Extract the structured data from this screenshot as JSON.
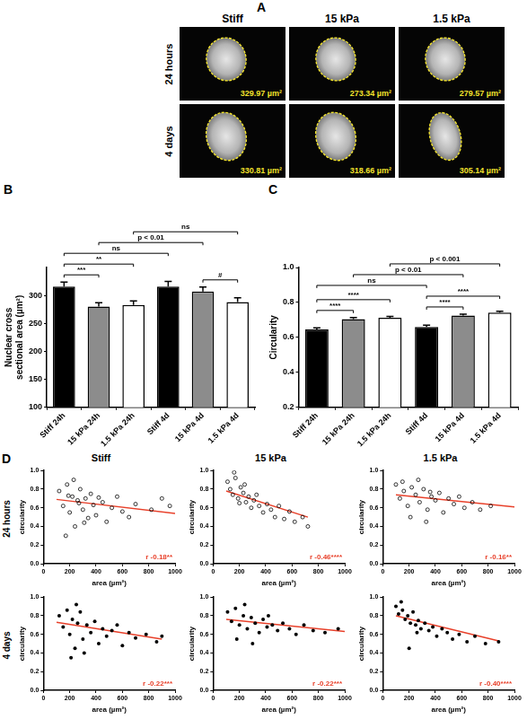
{
  "panel_a": {
    "letter": "A",
    "columns": [
      "Stiff",
      "15 kPa",
      "1.5 kPa"
    ],
    "rows": [
      "24 hours",
      "4 days"
    ],
    "areas": [
      [
        "329.97 µm²",
        "273.34 µm²",
        "279.57 µm²"
      ],
      [
        "330.81 µm²",
        "318.66 µm²",
        "305.14 µm²"
      ]
    ]
  },
  "panel_d": {
    "letter": "D",
    "columns": [
      "Stiff",
      "15 kPa",
      "1.5 kPa"
    ],
    "rows": [
      "24 hours",
      "4 days"
    ]
  },
  "chart_data": [
    {
      "panel": "B",
      "type": "bar",
      "categories": [
        "Stiff 24h",
        "15 kPa 24h",
        "1.5 kPa 24h",
        "Stiff 4d",
        "15 kPa 4d",
        "1.5 kPa 4d"
      ],
      "values": [
        316,
        280,
        283,
        316,
        307,
        288
      ],
      "errors": [
        8,
        7,
        7,
        9,
        8,
        8
      ],
      "colors": [
        "#000000",
        "#8c8c8c",
        "#ffffff",
        "#000000",
        "#8c8c8c",
        "#ffffff"
      ],
      "y_label": "Nuclear cross sectional area (µm²)",
      "ylim": [
        100,
        350
      ],
      "yticks": [
        100,
        150,
        200,
        250,
        300
      ],
      "grid": false,
      "annotations": [
        {
          "between": [
            "Stiff 24h",
            "15 kPa 24h"
          ],
          "label": "***"
        },
        {
          "between": [
            "Stiff 24h",
            "1.5 kPa 24h"
          ],
          "label": "**"
        },
        {
          "between": [
            "15 kPa 4d",
            "1.5 kPa 4d"
          ],
          "label": "#"
        },
        {
          "between": [
            "Stiff 24h",
            "Stiff 4d"
          ],
          "label": "ns"
        },
        {
          "between": [
            "15 kPa 24h",
            "15 kPa 4d"
          ],
          "label": "p < 0.01"
        },
        {
          "between": [
            "1.5 kPa 24h",
            "1.5 kPa 4d"
          ],
          "label": "ns"
        }
      ]
    },
    {
      "panel": "C",
      "type": "bar",
      "categories": [
        "Stiff 24h",
        "15 kPa 24h",
        "1.5 kPa 24h",
        "Stiff 4d",
        "15 kPa 4d",
        "1.5 kPa 4d"
      ],
      "values": [
        0.645,
        0.705,
        0.712,
        0.66,
        0.725,
        0.742
      ],
      "errors": [
        0.01,
        0.008,
        0.008,
        0.01,
        0.008,
        0.008
      ],
      "colors": [
        "#000000",
        "#8c8c8c",
        "#ffffff",
        "#000000",
        "#8c8c8c",
        "#ffffff"
      ],
      "y_label": "Circularity",
      "ylim": [
        0.2,
        1
      ],
      "yticks": [
        0.2,
        0.4,
        0.6,
        0.8,
        {
          "value": 1,
          "label": "1.0"
        }
      ],
      "grid": false,
      "annotations": [
        {
          "between": [
            "Stiff 24h",
            "15 kPa 24h"
          ],
          "label": "****"
        },
        {
          "between": [
            "Stiff 24h",
            "1.5 kPa 24h"
          ],
          "label": "****"
        },
        {
          "between": [
            "Stiff 4d",
            "15 kPa 4d"
          ],
          "label": "****"
        },
        {
          "between": [
            "Stiff 4d",
            "1.5 kPa 4d"
          ],
          "label": "****"
        },
        {
          "between": [
            "Stiff 24h",
            "Stiff 4d"
          ],
          "label": "ns"
        },
        {
          "between": [
            "15 kPa 24h",
            "15 kPa 4d"
          ],
          "label": "p < 0.01"
        },
        {
          "between": [
            "1.5 kPa 24h",
            "1.5 kPa 4d"
          ],
          "label": "p < 0.001"
        }
      ]
    },
    {
      "type": "scatter",
      "marker": "open_circle",
      "color": "#000000",
      "x": [
        120,
        150,
        180,
        200,
        220,
        240,
        260,
        280,
        300,
        320,
        340,
        360,
        380,
        400,
        420,
        450,
        480,
        520,
        560,
        600,
        650,
        700,
        820,
        900,
        960,
        170,
        230,
        310,
        270,
        190
      ],
      "values": [
        0.78,
        0.62,
        0.85,
        0.55,
        0.72,
        0.4,
        0.68,
        0.8,
        0.58,
        0.7,
        0.49,
        0.75,
        0.63,
        0.52,
        0.71,
        0.66,
        0.45,
        0.6,
        0.72,
        0.56,
        0.5,
        0.64,
        0.58,
        0.7,
        0.62,
        0.3,
        0.9,
        0.44,
        0.65,
        0.73
      ],
      "fit": {
        "x": [
          100,
          1000
        ],
        "values": [
          0.69,
          0.54
        ],
        "color": "#e8402a"
      },
      "x_label": "area (µm²)",
      "y_label": "circularity",
      "xlim": [
        0,
        1000
      ],
      "xticks": [
        0,
        200,
        400,
        600,
        800,
        1000
      ],
      "ylim": [
        0,
        1
      ],
      "yticks": [
        {
          "value": 0,
          "label": "0.0"
        },
        0.2,
        0.4,
        0.6,
        0.8,
        {
          "value": 1,
          "label": "1.0"
        }
      ],
      "grid": false,
      "annotations": [
        {
          "text": "r -0.18**",
          "color": "#e8402a"
        }
      ]
    },
    {
      "type": "scatter",
      "marker": "open_circle",
      "color": "#000000",
      "x": [
        110,
        130,
        150,
        170,
        190,
        210,
        230,
        250,
        270,
        290,
        310,
        330,
        350,
        380,
        410,
        440,
        470,
        500,
        540,
        580,
        620,
        680,
        720,
        160,
        200,
        240
      ],
      "values": [
        0.88,
        0.8,
        0.74,
        0.92,
        0.7,
        0.82,
        0.76,
        0.66,
        0.72,
        0.6,
        0.68,
        0.74,
        0.62,
        0.55,
        0.64,
        0.58,
        0.5,
        0.62,
        0.48,
        0.56,
        0.45,
        0.5,
        0.4,
        0.98,
        0.65,
        0.85
      ],
      "fit": {
        "x": [
          100,
          720
        ],
        "values": [
          0.78,
          0.5
        ],
        "color": "#e8402a"
      },
      "x_label": "area (µm²)",
      "y_label": "circularity",
      "xlim": [
        0,
        1000
      ],
      "xticks": [
        0,
        200,
        400,
        600,
        800,
        1000
      ],
      "ylim": [
        0,
        1
      ],
      "yticks": [
        {
          "value": 0,
          "label": "0.0"
        },
        0.2,
        0.4,
        0.6,
        0.8,
        {
          "value": 1,
          "label": "1.0"
        }
      ],
      "grid": false,
      "annotations": [
        {
          "text": "r -0.46****",
          "color": "#e8402a"
        }
      ]
    },
    {
      "type": "scatter",
      "marker": "open_circle",
      "color": "#000000",
      "x": [
        100,
        130,
        160,
        190,
        220,
        250,
        280,
        310,
        340,
        370,
        400,
        430,
        460,
        500,
        540,
        580,
        620,
        680,
        740,
        820,
        150,
        210,
        270,
        330,
        360
      ],
      "values": [
        0.85,
        0.7,
        0.78,
        0.62,
        0.82,
        0.74,
        0.66,
        0.8,
        0.58,
        0.72,
        0.68,
        0.76,
        0.55,
        0.7,
        0.64,
        0.72,
        0.6,
        0.66,
        0.58,
        0.62,
        0.88,
        0.5,
        0.9,
        0.45,
        0.77
      ],
      "fit": {
        "x": [
          100,
          1000
        ],
        "values": [
          0.74,
          0.61
        ],
        "color": "#e8402a"
      },
      "x_label": "area (µm²)",
      "y_label": "circularity",
      "xlim": [
        0,
        1000
      ],
      "xticks": [
        0,
        200,
        400,
        600,
        800,
        1000
      ],
      "ylim": [
        0,
        1
      ],
      "yticks": [
        {
          "value": 0,
          "label": "0.0"
        },
        0.2,
        0.4,
        0.6,
        0.8,
        {
          "value": 1,
          "label": "1.0"
        }
      ],
      "grid": false,
      "annotations": [
        {
          "text": "r -0.16**",
          "color": "#e8402a"
        }
      ]
    },
    {
      "type": "scatter",
      "marker": "filled_circle",
      "color": "#000000",
      "x": [
        120,
        150,
        180,
        200,
        220,
        240,
        260,
        280,
        300,
        330,
        360,
        390,
        420,
        450,
        480,
        520,
        560,
        600,
        650,
        700,
        780,
        860,
        900,
        210,
        250,
        310
      ],
      "values": [
        0.8,
        0.68,
        0.86,
        0.6,
        0.76,
        0.45,
        0.72,
        0.84,
        0.55,
        0.7,
        0.62,
        0.74,
        0.5,
        0.66,
        0.58,
        0.64,
        0.7,
        0.48,
        0.62,
        0.56,
        0.6,
        0.52,
        0.58,
        0.35,
        0.92,
        0.4
      ],
      "fit": {
        "x": [
          100,
          900
        ],
        "values": [
          0.73,
          0.55
        ],
        "color": "#e8402a"
      },
      "x_label": "area (µm²)",
      "y_label": "circularity",
      "xlim": [
        0,
        1000
      ],
      "xticks": [
        0,
        200,
        400,
        600,
        800,
        1000
      ],
      "ylim": [
        0,
        1
      ],
      "yticks": [
        {
          "value": 0,
          "label": "0.0"
        },
        0.2,
        0.4,
        0.6,
        0.8,
        {
          "value": 1,
          "label": "1.0"
        }
      ],
      "grid": false,
      "annotations": [
        {
          "text": "r -0.22***",
          "color": "#e8402a"
        }
      ]
    },
    {
      "type": "scatter",
      "marker": "filled_circle",
      "color": "#000000",
      "x": [
        110,
        140,
        170,
        200,
        230,
        260,
        290,
        320,
        350,
        380,
        410,
        450,
        490,
        530,
        580,
        630,
        690,
        760,
        850,
        950,
        180,
        240,
        300,
        420
      ],
      "values": [
        0.84,
        0.74,
        0.88,
        0.7,
        0.8,
        0.66,
        0.78,
        0.72,
        0.62,
        0.76,
        0.68,
        0.7,
        0.64,
        0.72,
        0.66,
        0.6,
        0.7,
        0.64,
        0.62,
        0.66,
        0.55,
        0.92,
        0.5,
        0.8
      ],
      "fit": {
        "x": [
          100,
          1000
        ],
        "values": [
          0.76,
          0.63
        ],
        "color": "#e8402a"
      },
      "x_label": "area (µm²)",
      "y_label": "circularity",
      "xlim": [
        0,
        1000
      ],
      "xticks": [
        0,
        200,
        400,
        600,
        800,
        1000
      ],
      "ylim": [
        0,
        1
      ],
      "yticks": [
        {
          "value": 0,
          "label": "0.0"
        },
        0.2,
        0.4,
        0.6,
        0.8,
        {
          "value": 1,
          "label": "1.0"
        }
      ],
      "grid": false,
      "annotations": [
        {
          "text": "r -0.22***",
          "color": "#e8402a"
        }
      ]
    },
    {
      "type": "scatter",
      "marker": "filled_circle",
      "color": "#000000",
      "x": [
        100,
        120,
        150,
        170,
        190,
        210,
        230,
        250,
        270,
        290,
        320,
        350,
        380,
        410,
        450,
        490,
        530,
        580,
        640,
        700,
        780,
        880,
        140,
        200,
        260
      ],
      "values": [
        0.9,
        0.82,
        0.86,
        0.76,
        0.8,
        0.72,
        0.84,
        0.7,
        0.75,
        0.66,
        0.72,
        0.64,
        0.68,
        0.58,
        0.66,
        0.62,
        0.55,
        0.6,
        0.52,
        0.58,
        0.5,
        0.52,
        0.95,
        0.45,
        0.62
      ],
      "fit": {
        "x": [
          100,
          880
        ],
        "values": [
          0.8,
          0.53
        ],
        "color": "#e8402a"
      },
      "x_label": "area (µm²)",
      "y_label": "circularity",
      "xlim": [
        0,
        1000
      ],
      "xticks": [
        0,
        200,
        400,
        600,
        800,
        1000
      ],
      "ylim": [
        0,
        1
      ],
      "yticks": [
        {
          "value": 0,
          "label": "0.0"
        },
        0.2,
        0.4,
        0.6,
        0.8,
        {
          "value": 1,
          "label": "1.0"
        }
      ],
      "grid": false,
      "annotations": [
        {
          "text": "r -0.40****",
          "color": "#e8402a"
        }
      ]
    }
  ]
}
